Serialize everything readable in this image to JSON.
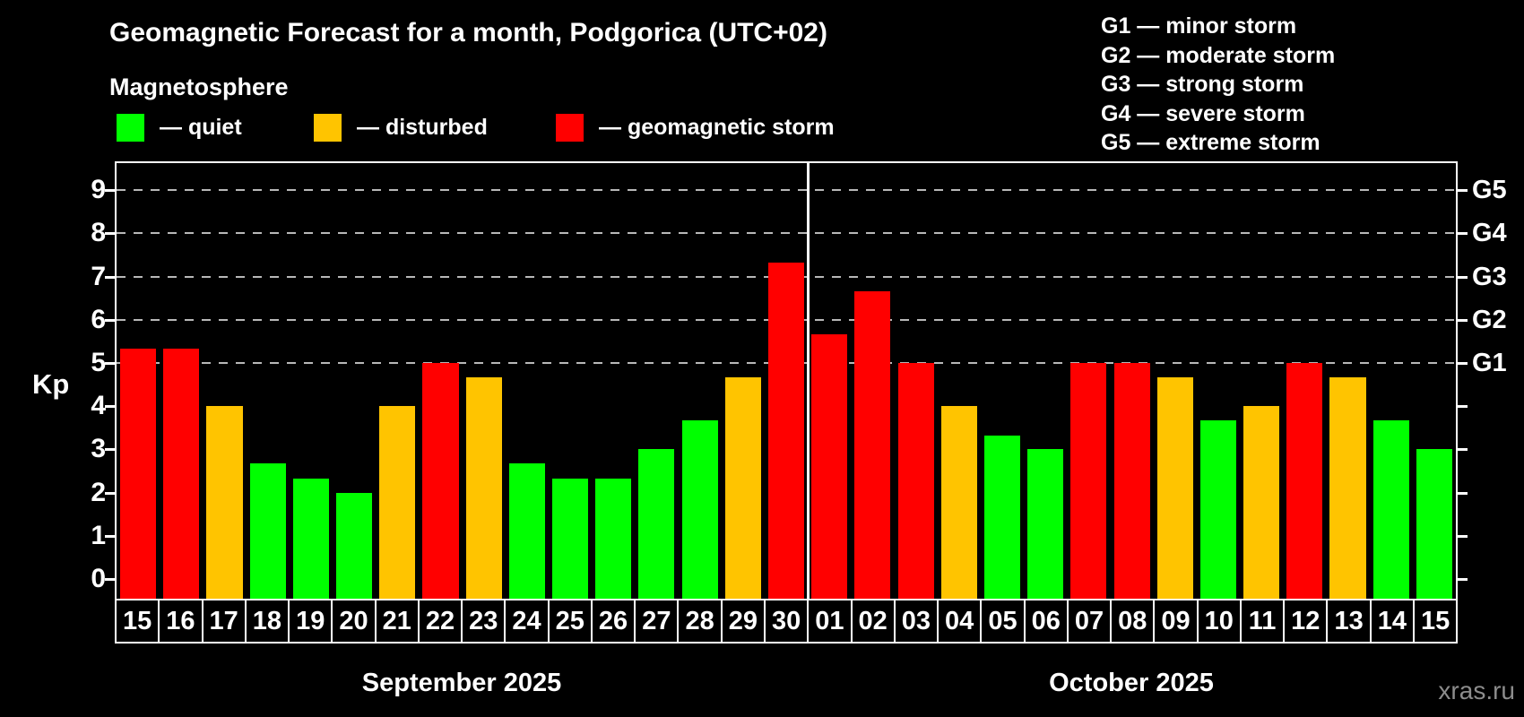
{
  "header": {
    "title": "Geomagnetic Forecast for a month, Podgorica (UTC+02)",
    "subtitle": "Magnetosphere"
  },
  "legend": {
    "items": [
      {
        "key": "quiet",
        "label": "— quiet",
        "color": "#00ff00"
      },
      {
        "key": "disturbed",
        "label": "— disturbed",
        "color": "#ffc400"
      },
      {
        "key": "storm",
        "label": "— geomagnetic storm",
        "color": "#ff0000"
      }
    ]
  },
  "g_scale_legend": {
    "items": [
      "G1 — minor storm",
      "G2 — moderate storm",
      "G3 — strong storm",
      "G4 — severe storm",
      "G5 — extreme storm"
    ]
  },
  "watermark": "xras.ru",
  "chart_data": {
    "type": "bar",
    "title": "Geomagnetic Forecast for a month, Podgorica (UTC+02)",
    "ylabel": "Kp",
    "ylim": [
      0,
      9
    ],
    "y_ticks": [
      0,
      1,
      2,
      3,
      4,
      5,
      6,
      7,
      8,
      9
    ],
    "grid": "dashed horizontal lines at Kp 5-9 only",
    "gridlines": [
      {
        "kp": 5,
        "right_label": "G1"
      },
      {
        "kp": 6,
        "right_label": "G2"
      },
      {
        "kp": 7,
        "right_label": "G3"
      },
      {
        "kp": 8,
        "right_label": "G4"
      },
      {
        "kp": 9,
        "right_label": "G5"
      }
    ],
    "months": [
      {
        "label": "September 2025",
        "abbr": "sep",
        "days": 16
      },
      {
        "label": "October 2025",
        "abbr": "oct",
        "days": 15
      }
    ],
    "categories": [
      "15",
      "16",
      "17",
      "18",
      "19",
      "20",
      "21",
      "22",
      "23",
      "24",
      "25",
      "26",
      "27",
      "28",
      "29",
      "30",
      "01",
      "02",
      "03",
      "04",
      "05",
      "06",
      "07",
      "08",
      "09",
      "10",
      "11",
      "12",
      "13",
      "14",
      "15"
    ],
    "values": [
      5.33,
      5.33,
      4.0,
      2.67,
      2.33,
      2.0,
      4.0,
      5.0,
      4.67,
      2.67,
      2.33,
      2.33,
      3.0,
      3.67,
      4.67,
      7.33,
      5.67,
      6.67,
      5.0,
      4.0,
      3.33,
      3.0,
      5.0,
      5.0,
      4.67,
      3.67,
      4.0,
      5.0,
      4.67,
      3.67,
      3.0
    ],
    "levels": [
      "storm",
      "storm",
      "disturbed",
      "quiet",
      "quiet",
      "quiet",
      "disturbed",
      "storm",
      "disturbed",
      "quiet",
      "quiet",
      "quiet",
      "quiet",
      "quiet",
      "disturbed",
      "storm",
      "storm",
      "storm",
      "storm",
      "disturbed",
      "quiet",
      "quiet",
      "storm",
      "storm",
      "disturbed",
      "quiet",
      "disturbed",
      "storm",
      "disturbed",
      "quiet",
      "quiet"
    ],
    "level_colors": {
      "quiet": "#00ff00",
      "disturbed": "#ffc400",
      "storm": "#ff0000"
    },
    "legend_position": "top-left",
    "month_separator": "white vertical line between Sep 30 and Oct 01"
  }
}
